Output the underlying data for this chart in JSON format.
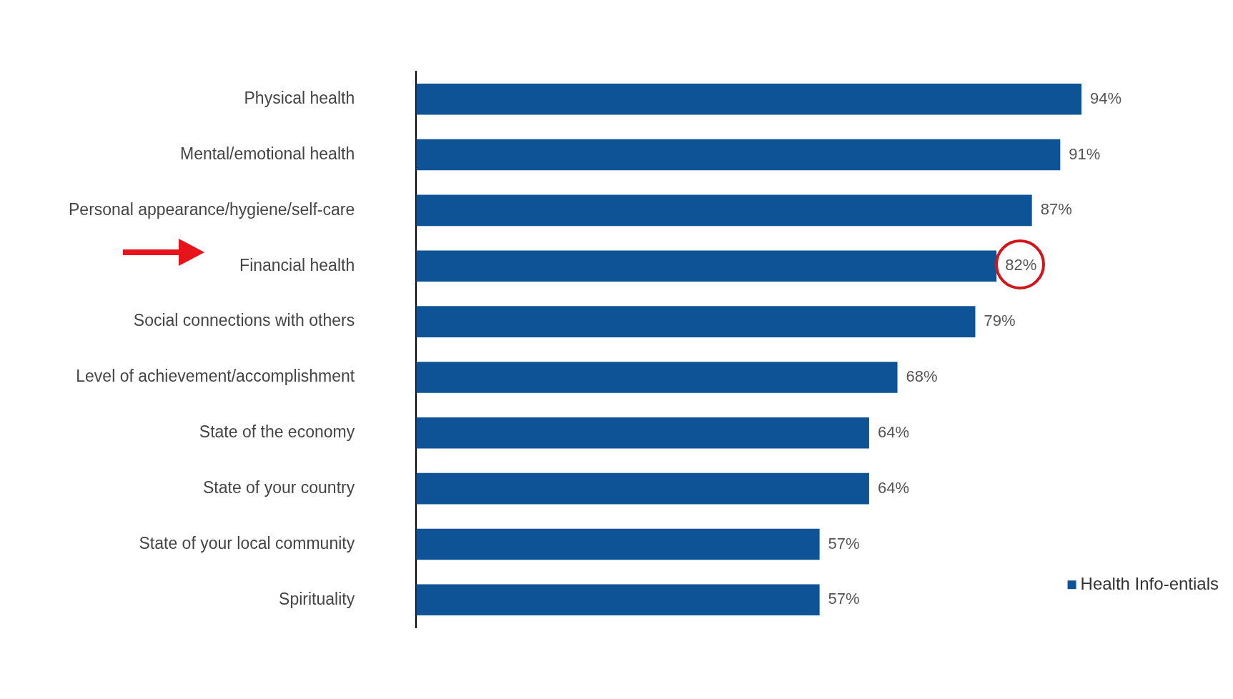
{
  "chart_data": {
    "type": "bar",
    "orientation": "horizontal",
    "categories": [
      "Physical health",
      "Mental/emotional health",
      "Personal appearance/hygiene/self-care",
      "Financial health",
      "Social connections with others",
      "Level of achievement/accomplishment",
      "State of the economy",
      "State of your country",
      "State of your local community",
      "Spirituality"
    ],
    "series": [
      {
        "name": "Health Info-entials",
        "color": "#0d5396",
        "values": [
          94,
          91,
          87,
          82,
          79,
          68,
          64,
          64,
          57,
          57
        ],
        "value_labels": [
          "94%",
          "91%",
          "87%",
          "82%",
          "79%",
          "68%",
          "64%",
          "64%",
          "57%",
          "57%"
        ]
      }
    ],
    "tick_labels": "y",
    "legend": "bottom right"
  }
}
